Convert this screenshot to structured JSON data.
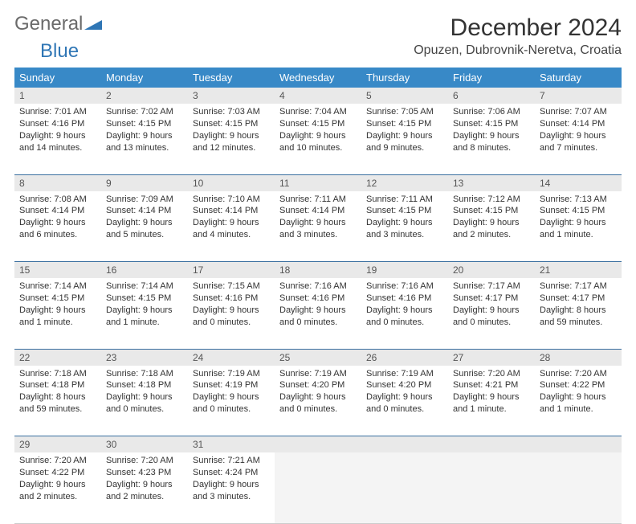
{
  "logo": {
    "text1": "General",
    "text2": "Blue"
  },
  "title": "December 2024",
  "location": "Opuzen, Dubrovnik-Neretva, Croatia",
  "colors": {
    "header_bg": "#3889c7",
    "header_text": "#ffffff",
    "daynum_bg": "#e9e9e9",
    "row_border": "#3a6fa0",
    "logo_gray": "#6a6a6a",
    "logo_blue": "#2f76b5"
  },
  "weekdays": [
    "Sunday",
    "Monday",
    "Tuesday",
    "Wednesday",
    "Thursday",
    "Friday",
    "Saturday"
  ],
  "weeks": [
    [
      {
        "n": "1",
        "sr": "Sunrise: 7:01 AM",
        "ss": "Sunset: 4:16 PM",
        "dl": "Daylight: 9 hours and 14 minutes."
      },
      {
        "n": "2",
        "sr": "Sunrise: 7:02 AM",
        "ss": "Sunset: 4:15 PM",
        "dl": "Daylight: 9 hours and 13 minutes."
      },
      {
        "n": "3",
        "sr": "Sunrise: 7:03 AM",
        "ss": "Sunset: 4:15 PM",
        "dl": "Daylight: 9 hours and 12 minutes."
      },
      {
        "n": "4",
        "sr": "Sunrise: 7:04 AM",
        "ss": "Sunset: 4:15 PM",
        "dl": "Daylight: 9 hours and 10 minutes."
      },
      {
        "n": "5",
        "sr": "Sunrise: 7:05 AM",
        "ss": "Sunset: 4:15 PM",
        "dl": "Daylight: 9 hours and 9 minutes."
      },
      {
        "n": "6",
        "sr": "Sunrise: 7:06 AM",
        "ss": "Sunset: 4:15 PM",
        "dl": "Daylight: 9 hours and 8 minutes."
      },
      {
        "n": "7",
        "sr": "Sunrise: 7:07 AM",
        "ss": "Sunset: 4:14 PM",
        "dl": "Daylight: 9 hours and 7 minutes."
      }
    ],
    [
      {
        "n": "8",
        "sr": "Sunrise: 7:08 AM",
        "ss": "Sunset: 4:14 PM",
        "dl": "Daylight: 9 hours and 6 minutes."
      },
      {
        "n": "9",
        "sr": "Sunrise: 7:09 AM",
        "ss": "Sunset: 4:14 PM",
        "dl": "Daylight: 9 hours and 5 minutes."
      },
      {
        "n": "10",
        "sr": "Sunrise: 7:10 AM",
        "ss": "Sunset: 4:14 PM",
        "dl": "Daylight: 9 hours and 4 minutes."
      },
      {
        "n": "11",
        "sr": "Sunrise: 7:11 AM",
        "ss": "Sunset: 4:14 PM",
        "dl": "Daylight: 9 hours and 3 minutes."
      },
      {
        "n": "12",
        "sr": "Sunrise: 7:11 AM",
        "ss": "Sunset: 4:15 PM",
        "dl": "Daylight: 9 hours and 3 minutes."
      },
      {
        "n": "13",
        "sr": "Sunrise: 7:12 AM",
        "ss": "Sunset: 4:15 PM",
        "dl": "Daylight: 9 hours and 2 minutes."
      },
      {
        "n": "14",
        "sr": "Sunrise: 7:13 AM",
        "ss": "Sunset: 4:15 PM",
        "dl": "Daylight: 9 hours and 1 minute."
      }
    ],
    [
      {
        "n": "15",
        "sr": "Sunrise: 7:14 AM",
        "ss": "Sunset: 4:15 PM",
        "dl": "Daylight: 9 hours and 1 minute."
      },
      {
        "n": "16",
        "sr": "Sunrise: 7:14 AM",
        "ss": "Sunset: 4:15 PM",
        "dl": "Daylight: 9 hours and 1 minute."
      },
      {
        "n": "17",
        "sr": "Sunrise: 7:15 AM",
        "ss": "Sunset: 4:16 PM",
        "dl": "Daylight: 9 hours and 0 minutes."
      },
      {
        "n": "18",
        "sr": "Sunrise: 7:16 AM",
        "ss": "Sunset: 4:16 PM",
        "dl": "Daylight: 9 hours and 0 minutes."
      },
      {
        "n": "19",
        "sr": "Sunrise: 7:16 AM",
        "ss": "Sunset: 4:16 PM",
        "dl": "Daylight: 9 hours and 0 minutes."
      },
      {
        "n": "20",
        "sr": "Sunrise: 7:17 AM",
        "ss": "Sunset: 4:17 PM",
        "dl": "Daylight: 9 hours and 0 minutes."
      },
      {
        "n": "21",
        "sr": "Sunrise: 7:17 AM",
        "ss": "Sunset: 4:17 PM",
        "dl": "Daylight: 8 hours and 59 minutes."
      }
    ],
    [
      {
        "n": "22",
        "sr": "Sunrise: 7:18 AM",
        "ss": "Sunset: 4:18 PM",
        "dl": "Daylight: 8 hours and 59 minutes."
      },
      {
        "n": "23",
        "sr": "Sunrise: 7:18 AM",
        "ss": "Sunset: 4:18 PM",
        "dl": "Daylight: 9 hours and 0 minutes."
      },
      {
        "n": "24",
        "sr": "Sunrise: 7:19 AM",
        "ss": "Sunset: 4:19 PM",
        "dl": "Daylight: 9 hours and 0 minutes."
      },
      {
        "n": "25",
        "sr": "Sunrise: 7:19 AM",
        "ss": "Sunset: 4:20 PM",
        "dl": "Daylight: 9 hours and 0 minutes."
      },
      {
        "n": "26",
        "sr": "Sunrise: 7:19 AM",
        "ss": "Sunset: 4:20 PM",
        "dl": "Daylight: 9 hours and 0 minutes."
      },
      {
        "n": "27",
        "sr": "Sunrise: 7:20 AM",
        "ss": "Sunset: 4:21 PM",
        "dl": "Daylight: 9 hours and 1 minute."
      },
      {
        "n": "28",
        "sr": "Sunrise: 7:20 AM",
        "ss": "Sunset: 4:22 PM",
        "dl": "Daylight: 9 hours and 1 minute."
      }
    ],
    [
      {
        "n": "29",
        "sr": "Sunrise: 7:20 AM",
        "ss": "Sunset: 4:22 PM",
        "dl": "Daylight: 9 hours and 2 minutes."
      },
      {
        "n": "30",
        "sr": "Sunrise: 7:20 AM",
        "ss": "Sunset: 4:23 PM",
        "dl": "Daylight: 9 hours and 2 minutes."
      },
      {
        "n": "31",
        "sr": "Sunrise: 7:21 AM",
        "ss": "Sunset: 4:24 PM",
        "dl": "Daylight: 9 hours and 3 minutes."
      },
      null,
      null,
      null,
      null
    ]
  ]
}
